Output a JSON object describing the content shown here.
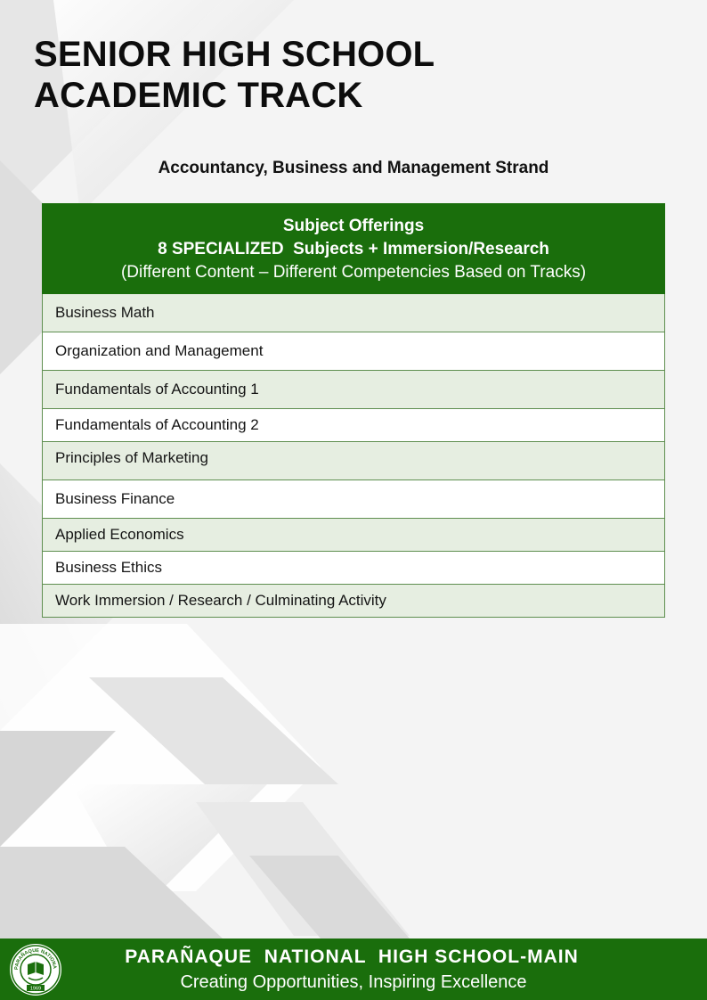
{
  "header": {
    "title_line1": "SENIOR HIGH SCHOOL",
    "title_line2": "ACADEMIC TRACK",
    "strand": "Accountancy, Business and Management Strand"
  },
  "table": {
    "header_line1": "Subject Offerings",
    "header_line2": "8 SPECIALIZED  Subjects + Immersion/Research",
    "header_line3": "(Different Content – Different Competencies Based on Tracks)",
    "rows": [
      "Business Math",
      "Organization and Management",
      "Fundamentals of Accounting 1",
      "Fundamentals of Accounting 2",
      "Principles of Marketing",
      "Business Finance",
      "Applied Economics",
      "Business Ethics",
      "Work Immersion / Research / Culminating Activity"
    ]
  },
  "footer": {
    "school_name": "PARAÑAQUE  NATIONAL  HIGH SCHOOL-MAIN",
    "motto": "Creating Opportunities, Inspiring Excellence",
    "seal_text": "PARAÑAQUE NATIONAL HIGH SCHOOL",
    "seal_year": "1969"
  },
  "colors": {
    "brand_green": "#1a6e0c",
    "row_alt": "#e6eee1",
    "row_plain": "#ffffff"
  }
}
